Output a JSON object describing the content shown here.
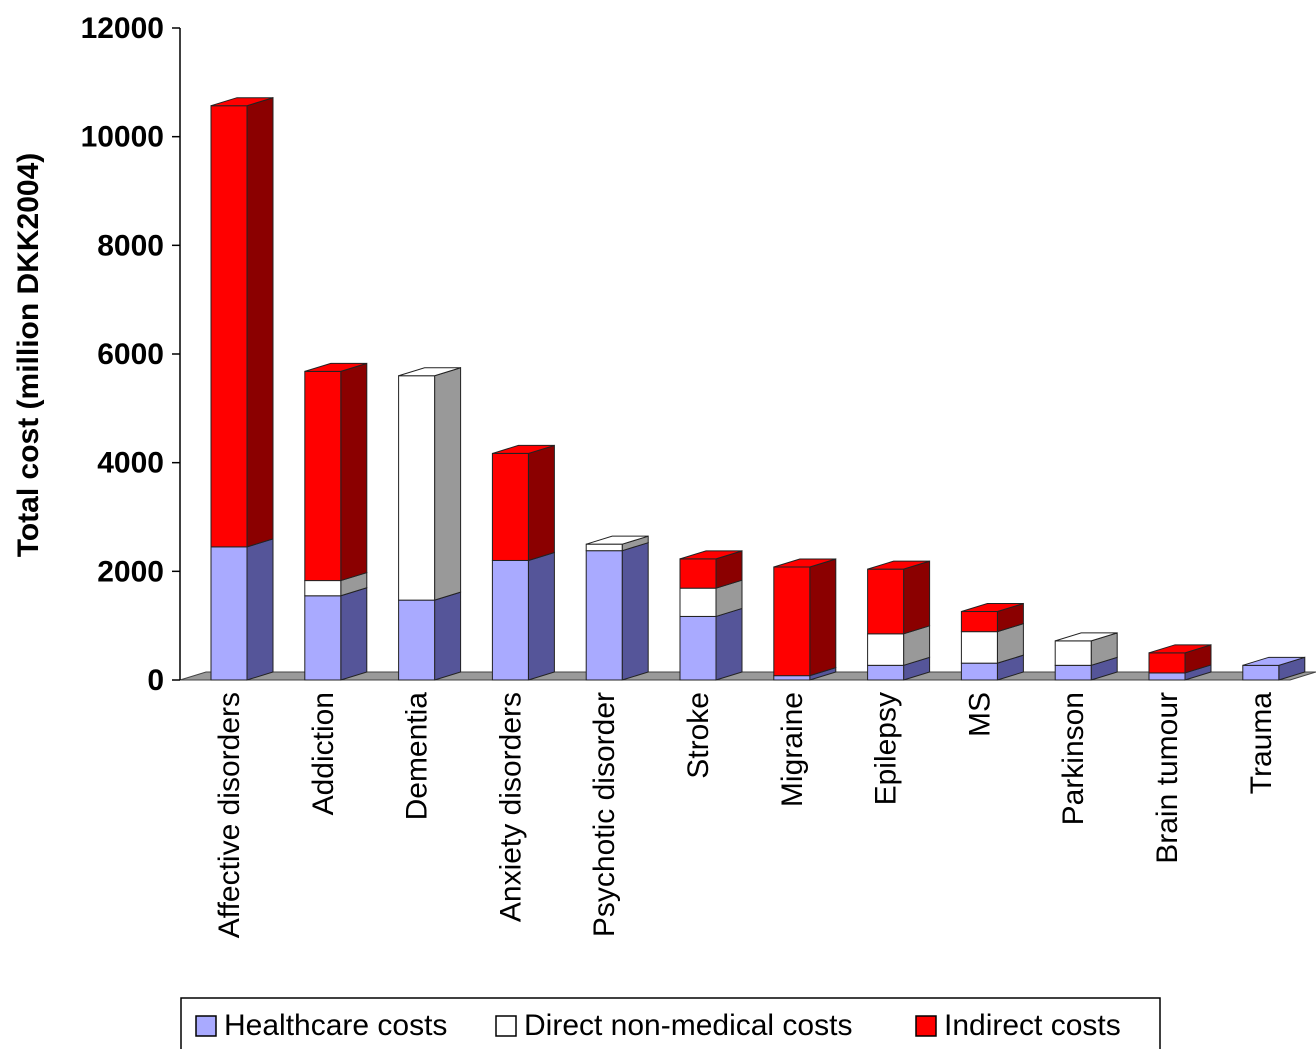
{
  "chart_data": {
    "type": "bar",
    "stacked": true,
    "style": "3d",
    "ylabel": "Total cost (million DKK2004)",
    "xlabel": "",
    "ylim": [
      0,
      12000
    ],
    "yticks": [
      0,
      2000,
      4000,
      6000,
      8000,
      10000,
      12000
    ],
    "categories": [
      "Affective disorders",
      "Addiction",
      "Dementia",
      "Anxiety disorders",
      "Psychotic disorder",
      "Stroke",
      "Migraine",
      "Epilepsy",
      "MS",
      "Parkinson",
      "Brain tumour",
      "Trauma"
    ],
    "series": [
      {
        "name": "Healthcare costs",
        "color": "#a9aaff",
        "side_color": "#555599",
        "values": [
          2450,
          1550,
          1470,
          2200,
          2380,
          1170,
          80,
          270,
          310,
          270,
          130,
          270
        ]
      },
      {
        "name": "Direct non-medical costs",
        "color": "#ffffff",
        "side_color": "#999999",
        "values": [
          0,
          280,
          4130,
          0,
          120,
          520,
          0,
          580,
          580,
          450,
          0,
          0
        ]
      },
      {
        "name": "Indirect costs",
        "color": "#ff0000",
        "side_color": "#8b0000",
        "values": [
          8120,
          3850,
          0,
          1970,
          0,
          540,
          2000,
          1190,
          370,
          0,
          370,
          0
        ]
      }
    ],
    "legend_position": "bottom",
    "grid": false
  }
}
